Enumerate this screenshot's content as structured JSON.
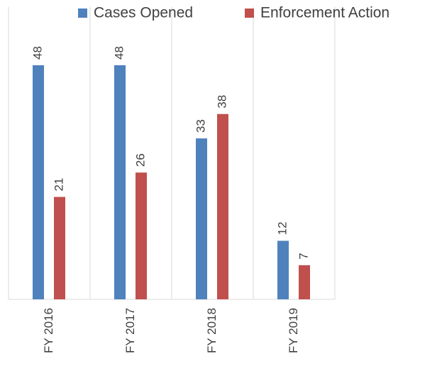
{
  "chart_data": {
    "type": "bar",
    "categories": [
      "FY 2016",
      "FY 2017",
      "FY 2018",
      "FY 2019"
    ],
    "series": [
      {
        "name": "Cases Opened",
        "color": "#4f81bd",
        "values": [
          48,
          48,
          33,
          12
        ]
      },
      {
        "name": "Enforcement Action",
        "color": "#c0504d",
        "values": [
          21,
          26,
          38,
          7
        ]
      }
    ],
    "ylim": [
      0,
      60
    ]
  }
}
